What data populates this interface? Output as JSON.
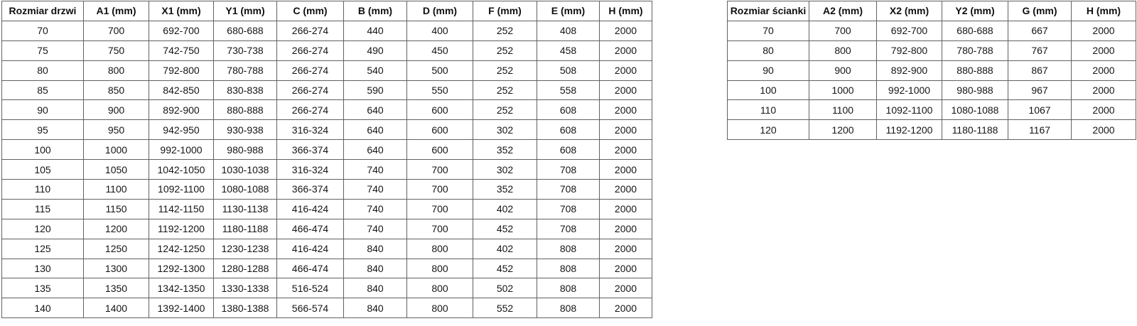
{
  "door_table": {
    "headers": [
      "Rozmiar drzwi",
      "A1 (mm)",
      "X1 (mm)",
      "Y1 (mm)",
      "C (mm)",
      "B (mm)",
      "D (mm)",
      "F (mm)",
      "E (mm)",
      "H (mm)"
    ],
    "rows": [
      [
        "70",
        "700",
        "692-700",
        "680-688",
        "266-274",
        "440",
        "400",
        "252",
        "408",
        "2000"
      ],
      [
        "75",
        "750",
        "742-750",
        "730-738",
        "266-274",
        "490",
        "450",
        "252",
        "458",
        "2000"
      ],
      [
        "80",
        "800",
        "792-800",
        "780-788",
        "266-274",
        "540",
        "500",
        "252",
        "508",
        "2000"
      ],
      [
        "85",
        "850",
        "842-850",
        "830-838",
        "266-274",
        "590",
        "550",
        "252",
        "558",
        "2000"
      ],
      [
        "90",
        "900",
        "892-900",
        "880-888",
        "266-274",
        "640",
        "600",
        "252",
        "608",
        "2000"
      ],
      [
        "95",
        "950",
        "942-950",
        "930-938",
        "316-324",
        "640",
        "600",
        "302",
        "608",
        "2000"
      ],
      [
        "100",
        "1000",
        "992-1000",
        "980-988",
        "366-374",
        "640",
        "600",
        "352",
        "608",
        "2000"
      ],
      [
        "105",
        "1050",
        "1042-1050",
        "1030-1038",
        "316-324",
        "740",
        "700",
        "302",
        "708",
        "2000"
      ],
      [
        "110",
        "1100",
        "1092-1100",
        "1080-1088",
        "366-374",
        "740",
        "700",
        "352",
        "708",
        "2000"
      ],
      [
        "115",
        "1150",
        "1142-1150",
        "1130-1138",
        "416-424",
        "740",
        "700",
        "402",
        "708",
        "2000"
      ],
      [
        "120",
        "1200",
        "1192-1200",
        "1180-1188",
        "466-474",
        "740",
        "700",
        "452",
        "708",
        "2000"
      ],
      [
        "125",
        "1250",
        "1242-1250",
        "1230-1238",
        "416-424",
        "840",
        "800",
        "402",
        "808",
        "2000"
      ],
      [
        "130",
        "1300",
        "1292-1300",
        "1280-1288",
        "466-474",
        "840",
        "800",
        "452",
        "808",
        "2000"
      ],
      [
        "135",
        "1350",
        "1342-1350",
        "1330-1338",
        "516-524",
        "840",
        "800",
        "502",
        "808",
        "2000"
      ],
      [
        "140",
        "1400",
        "1392-1400",
        "1380-1388",
        "566-574",
        "840",
        "800",
        "552",
        "808",
        "2000"
      ]
    ]
  },
  "wall_table": {
    "headers": [
      "Rozmiar ścianki",
      "A2 (mm)",
      "X2 (mm)",
      "Y2 (mm)",
      "G (mm)",
      "H (mm)"
    ],
    "rows": [
      [
        "70",
        "700",
        "692-700",
        "680-688",
        "667",
        "2000"
      ],
      [
        "80",
        "800",
        "792-800",
        "780-788",
        "767",
        "2000"
      ],
      [
        "90",
        "900",
        "892-900",
        "880-888",
        "867",
        "2000"
      ],
      [
        "100",
        "1000",
        "992-1000",
        "980-988",
        "967",
        "2000"
      ],
      [
        "110",
        "1100",
        "1092-1100",
        "1080-1088",
        "1067",
        "2000"
      ],
      [
        "120",
        "1200",
        "1192-1200",
        "1180-1188",
        "1167",
        "2000"
      ]
    ]
  },
  "colors": {
    "background": "#ffffff",
    "border": "#616161",
    "text": "#151515"
  }
}
